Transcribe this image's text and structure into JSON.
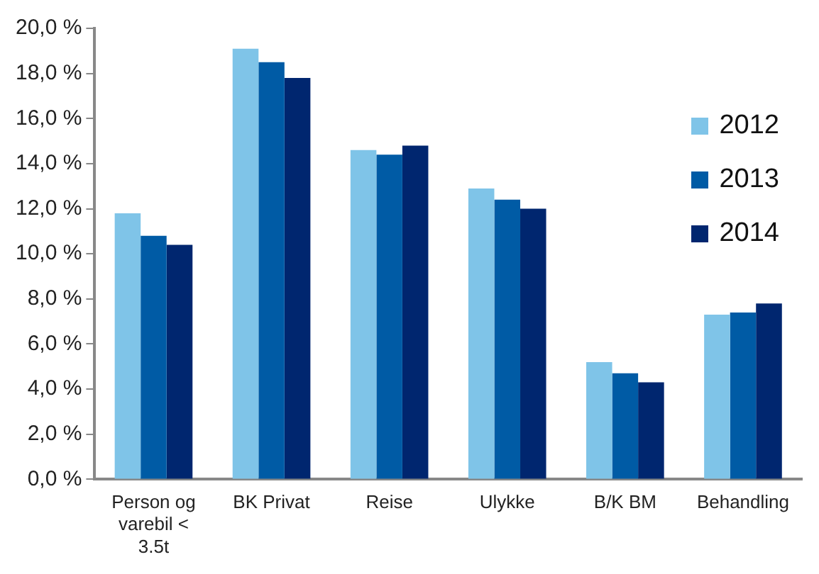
{
  "chart_data": {
    "type": "bar",
    "categories": [
      "Person og varebil < 3.5t",
      "BK Privat",
      "Reise",
      "Ulykke",
      "B/K BM",
      "Behandling"
    ],
    "series": [
      {
        "name": "2012",
        "color": "#7fc4e8",
        "values": [
          11.8,
          19.1,
          14.6,
          12.9,
          5.2,
          7.3
        ]
      },
      {
        "name": "2013",
        "color": "#005ba5",
        "values": [
          10.8,
          18.5,
          14.4,
          12.4,
          4.7,
          7.4
        ]
      },
      {
        "name": "2014",
        "color": "#00266f",
        "values": [
          10.4,
          17.8,
          14.8,
          12.0,
          4.3,
          7.8
        ]
      }
    ],
    "ylim": [
      0,
      20
    ],
    "yticks": [
      {
        "value": 0,
        "label": "0,0 %"
      },
      {
        "value": 2,
        "label": "2,0 %"
      },
      {
        "value": 4,
        "label": "4,0 %"
      },
      {
        "value": 6,
        "label": "6,0 %"
      },
      {
        "value": 8,
        "label": "8,0 %"
      },
      {
        "value": 10,
        "label": "10,0 %"
      },
      {
        "value": 12,
        "label": "12,0 %"
      },
      {
        "value": 14,
        "label": "14,0 %"
      },
      {
        "value": 16,
        "label": "16,0 %"
      },
      {
        "value": 18,
        "label": "18,0 %"
      },
      {
        "value": 20,
        "label": "20,0 %"
      }
    ],
    "grid": false,
    "legend": "top right"
  }
}
